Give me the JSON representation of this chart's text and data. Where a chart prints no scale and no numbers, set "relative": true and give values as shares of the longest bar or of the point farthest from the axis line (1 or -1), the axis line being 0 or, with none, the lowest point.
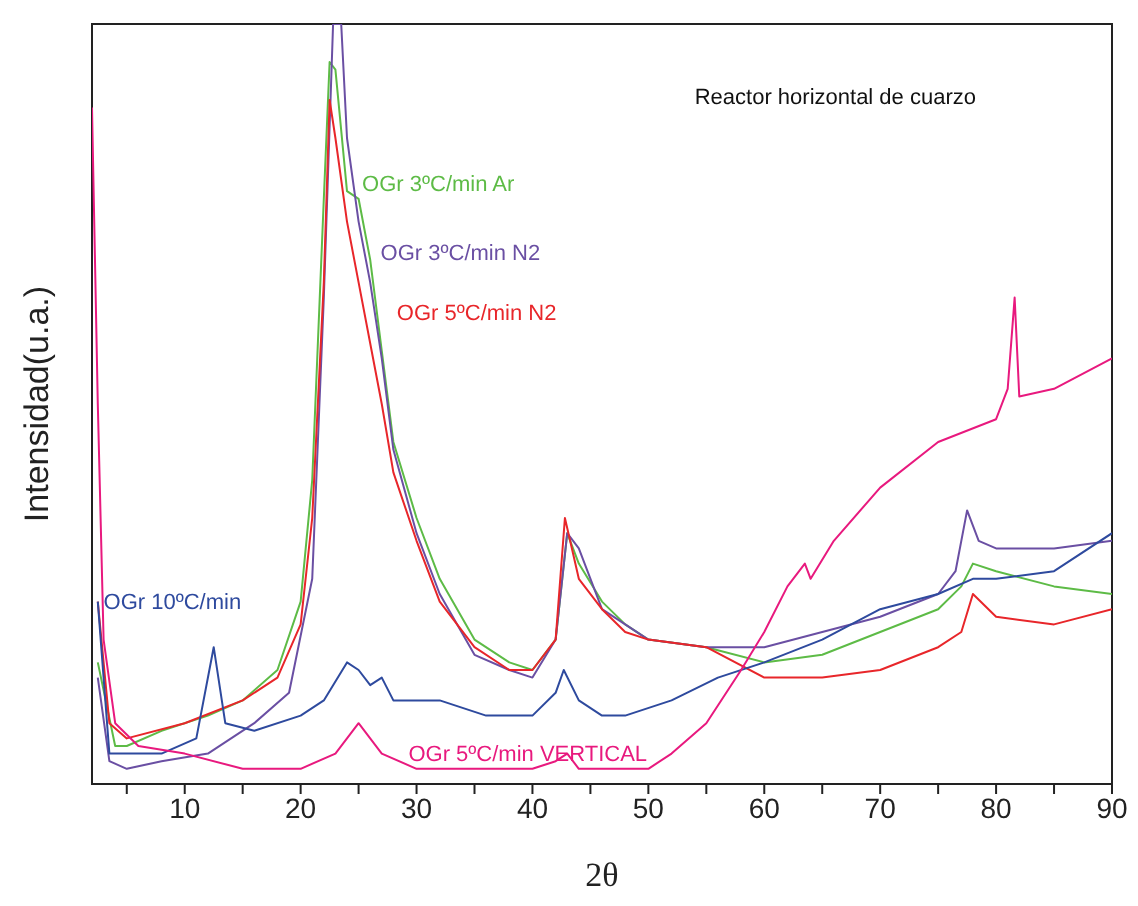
{
  "chart_data": {
    "type": "line",
    "title": "Reactor horizontal de cuarzo",
    "xlabel": "2θ",
    "ylabel": "Intensidad(u.a.)",
    "relative": true,
    "marker": "none",
    "line_style": "solid",
    "xlim": [
      2,
      90
    ],
    "xticks": [
      {
        "value": 5,
        "label": null
      },
      10,
      {
        "value": 15,
        "label": null
      },
      20,
      {
        "value": 25,
        "label": null
      },
      30,
      {
        "value": 35,
        "label": null
      },
      40,
      {
        "value": 45,
        "label": null
      },
      50,
      {
        "value": 55,
        "label": null
      },
      60,
      {
        "value": 65,
        "label": null
      },
      70,
      {
        "value": 75,
        "label": null
      },
      80,
      {
        "value": 85,
        "label": null
      },
      90
    ],
    "series": [
      {
        "name": "OGr 3ºC/min Ar",
        "color": "#5dbb46",
        "x": [
          2.5,
          4,
          5,
          8,
          12,
          15,
          18,
          20,
          21,
          22,
          22.5,
          23,
          24,
          25,
          26,
          27,
          28,
          30,
          32,
          35,
          38,
          40,
          42,
          43,
          44,
          46,
          48,
          50,
          55,
          60,
          65,
          70,
          75,
          77,
          78,
          80,
          85,
          90
        ],
        "values": [
          0.16,
          0.05,
          0.05,
          0.07,
          0.09,
          0.11,
          0.15,
          0.24,
          0.4,
          0.77,
          0.95,
          0.94,
          0.78,
          0.77,
          0.69,
          0.57,
          0.45,
          0.35,
          0.27,
          0.19,
          0.16,
          0.15,
          0.19,
          0.33,
          0.29,
          0.24,
          0.21,
          0.19,
          0.18,
          0.16,
          0.17,
          0.2,
          0.23,
          0.26,
          0.29,
          0.28,
          0.26,
          0.25
        ]
      },
      {
        "name": "OGr 3ºC/min N2",
        "color": "#6a4fa3",
        "x": [
          2.5,
          3.5,
          5,
          8,
          12,
          16,
          19,
          21,
          22,
          22.8,
          23.5,
          24,
          25,
          26,
          27,
          28,
          30,
          32,
          35,
          38,
          40,
          42,
          43,
          44,
          46,
          50,
          55,
          60,
          65,
          70,
          75,
          76.5,
          77.5,
          78.5,
          80,
          85,
          90
        ],
        "values": [
          0.14,
          0.03,
          0.02,
          0.03,
          0.04,
          0.08,
          0.12,
          0.27,
          0.64,
          1,
          1,
          0.85,
          0.74,
          0.66,
          0.56,
          0.44,
          0.33,
          0.25,
          0.17,
          0.15,
          0.14,
          0.19,
          0.33,
          0.31,
          0.23,
          0.19,
          0.18,
          0.18,
          0.2,
          0.22,
          0.25,
          0.28,
          0.36,
          0.32,
          0.31,
          0.31,
          0.32
        ]
      },
      {
        "name": "OGr 5ºC/min N2",
        "color": "#e8262a",
        "x": [
          2.5,
          3.5,
          5,
          10,
          15,
          18,
          20,
          21,
          22,
          22.5,
          23,
          24,
          25,
          26,
          27,
          28,
          30,
          32,
          35,
          38,
          40,
          42,
          42.8,
          44,
          46,
          48,
          50,
          55,
          60,
          65,
          70,
          75,
          77,
          78,
          80,
          85,
          90
        ],
        "values": [
          0.24,
          0.08,
          0.06,
          0.08,
          0.11,
          0.14,
          0.21,
          0.35,
          0.66,
          0.9,
          0.85,
          0.74,
          0.66,
          0.58,
          0.5,
          0.41,
          0.32,
          0.24,
          0.18,
          0.15,
          0.15,
          0.19,
          0.35,
          0.27,
          0.23,
          0.2,
          0.19,
          0.18,
          0.14,
          0.14,
          0.15,
          0.18,
          0.2,
          0.25,
          0.22,
          0.21,
          0.23
        ]
      },
      {
        "name": "OGr 10ºC/min",
        "color": "#2e4a9e",
        "x": [
          2.5,
          3.5,
          5,
          8,
          11,
          12.5,
          13.5,
          16,
          20,
          22,
          24,
          25,
          26,
          27,
          28,
          32,
          36,
          40,
          42,
          42.7,
          44,
          46,
          48,
          52,
          56,
          60,
          65,
          70,
          75,
          78,
          80,
          85,
          90
        ],
        "values": [
          0.24,
          0.04,
          0.04,
          0.04,
          0.06,
          0.18,
          0.08,
          0.07,
          0.09,
          0.11,
          0.16,
          0.15,
          0.13,
          0.14,
          0.11,
          0.11,
          0.09,
          0.09,
          0.12,
          0.15,
          0.11,
          0.09,
          0.09,
          0.11,
          0.14,
          0.16,
          0.19,
          0.23,
          0.25,
          0.27,
          0.27,
          0.28,
          0.33
        ]
      },
      {
        "name": "OGr 5ºC/min VERTICAL",
        "color": "#e8197e",
        "x": [
          2,
          2.5,
          3,
          4,
          6,
          10,
          15,
          20,
          23,
          25,
          27,
          30,
          35,
          40,
          42,
          43,
          44,
          50,
          52,
          55,
          58,
          60,
          62,
          63.5,
          64,
          66,
          70,
          75,
          80,
          81,
          81.6,
          82,
          85,
          90
        ],
        "values": [
          0.89,
          0.5,
          0.19,
          0.08,
          0.05,
          0.04,
          0.02,
          0.02,
          0.04,
          0.08,
          0.04,
          0.02,
          0.02,
          0.02,
          0.03,
          0.04,
          0.02,
          0.02,
          0.04,
          0.08,
          0.15,
          0.2,
          0.26,
          0.29,
          0.27,
          0.32,
          0.39,
          0.45,
          0.48,
          0.52,
          0.64,
          0.51,
          0.52,
          0.56
        ]
      }
    ]
  }
}
